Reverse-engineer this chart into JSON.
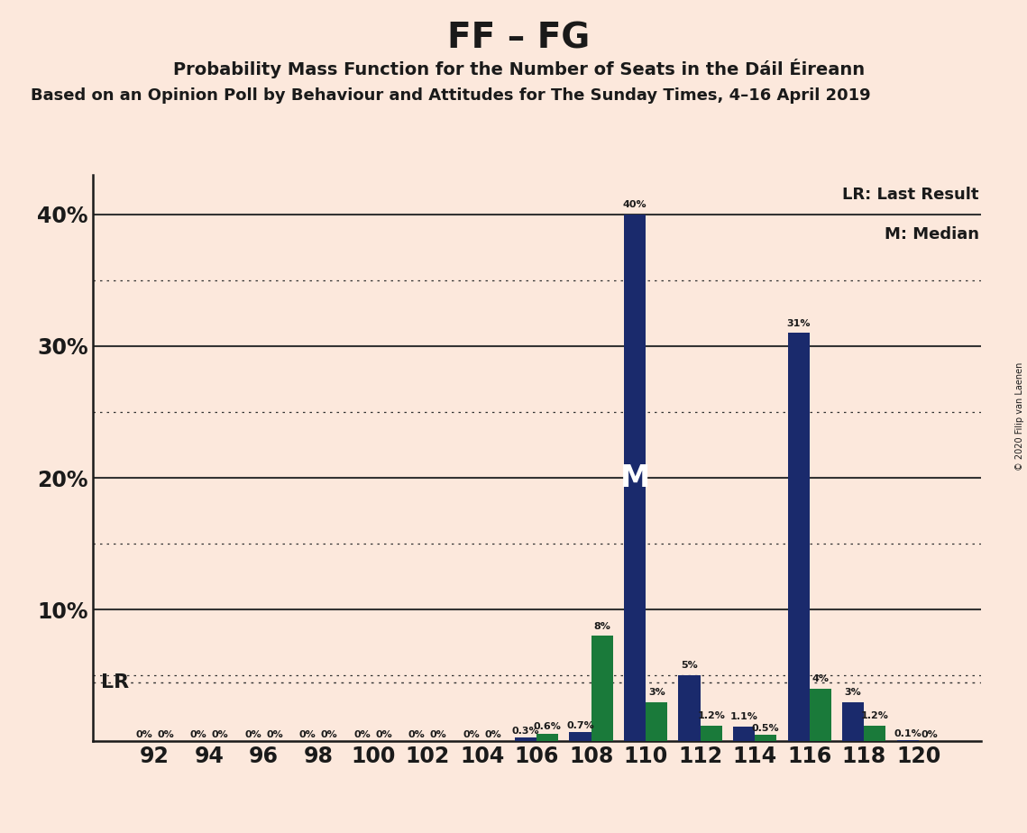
{
  "title": "FF – FG",
  "subtitle": "Probability Mass Function for the Number of Seats in the Dáil Éireann",
  "subtitle2": "Based on an Opinion Poll by Behaviour and Attitudes for The Sunday Times, 4–16 April 2019",
  "copyright": "© 2020 Filip van Laenen",
  "seats": [
    92,
    94,
    96,
    98,
    100,
    102,
    104,
    106,
    108,
    110,
    112,
    114,
    116,
    118,
    120
  ],
  "blue_values": [
    0.0,
    0.0,
    0.0,
    0.0,
    0.0,
    0.0,
    0.0,
    0.3,
    0.7,
    40.0,
    5.0,
    1.1,
    31.0,
    3.0,
    0.1
  ],
  "green_values": [
    0.0,
    0.0,
    0.0,
    0.0,
    0.0,
    0.0,
    0.0,
    0.6,
    8.0,
    3.0,
    1.2,
    0.5,
    4.0,
    1.2,
    0.0
  ],
  "blue_bar_labels": [
    "0%",
    "0%",
    "0%",
    "0%",
    "0%",
    "0%",
    "0%",
    "0.3%",
    "0.7%",
    "40%",
    "5%",
    "1.1%",
    "31%",
    "3%",
    "0.1%"
  ],
  "green_bar_labels": [
    "0%",
    "0%",
    "0%",
    "0%",
    "0%",
    "0%",
    "0%",
    "0.6%",
    "8%",
    "3%",
    "1.2%",
    "0.5%",
    "4%",
    "1.2%",
    "0%"
  ],
  "blue_color": "#1a2a6c",
  "green_color": "#1a7a3a",
  "background_color": "#fce8dc",
  "lr_line_value": 4.5,
  "median_seat": 110,
  "ylim": [
    0,
    43
  ],
  "dotted_lines": [
    5.0,
    15.0,
    25.0,
    35.0
  ],
  "solid_lines": [
    10.0,
    20.0,
    30.0,
    40.0
  ]
}
